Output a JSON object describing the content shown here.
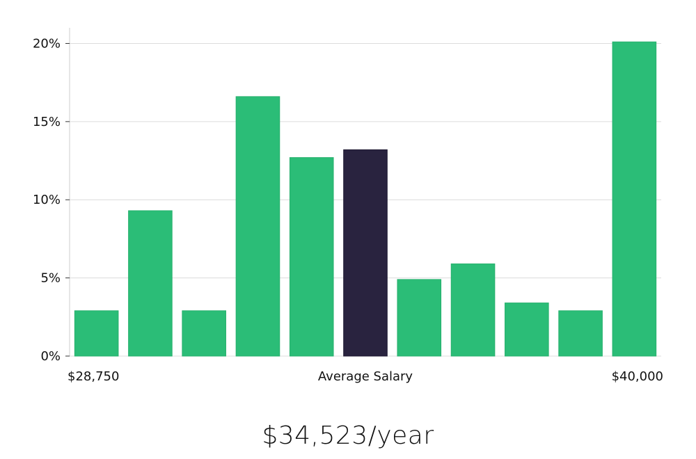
{
  "chart_data": {
    "type": "bar",
    "title": "",
    "xlabel": "",
    "ylabel": "",
    "values": [
      2.9,
      9.3,
      2.9,
      16.6,
      12.7,
      13.2,
      4.9,
      5.9,
      3.4,
      2.9,
      20.1
    ],
    "highlight_index": 5,
    "ylim": [
      0,
      21
    ],
    "yticks": [
      0,
      5,
      10,
      15,
      20
    ],
    "ytick_labels": [
      "0%",
      "5%",
      "10%",
      "15%",
      "20%"
    ],
    "x_labels": {
      "left": "$28,750",
      "center": "Average Salary",
      "right": "$40,000"
    },
    "grid": true,
    "colors": {
      "bar": "#2bbd77",
      "highlight": "#29233f",
      "grid": "#dcdcdc",
      "axis": "#cccccc"
    }
  },
  "summary": {
    "average_salary": "$34,523/year"
  }
}
